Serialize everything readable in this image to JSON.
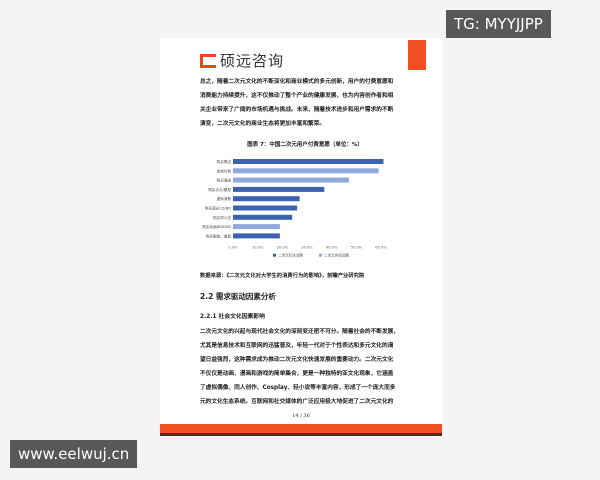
{
  "header": {
    "brand": "硕远咨询"
  },
  "intro_paragraph": [
    "总之，随着二次元文化的不断深化和商业模式的多元创新，用户的付费意愿和",
    "消费能力持续提升，这不仅推动了整个产业的健康发展，也为内容创作者和相",
    "关企业带来了广阔的市场机遇与挑战。未来，随着技术进步和用户需求的不断",
    "演变，二次元文化的商业生态将更加丰富和繁荣。"
  ],
  "chart_title": "图表 7：中国二次元用户付费意愿（单位：%）",
  "chart_data": {
    "type": "bar",
    "orientation": "horizontal",
    "categories": [
      "购买周边",
      "游戏付费",
      "购买漫画",
      "购买手办/模型",
      "虚拟消费",
      "购买蓝光CD/BD",
      "购买同人志",
      "购买动画BD/DVD",
      "购买服装、道具"
    ],
    "values": [
      61,
      59,
      47,
      37,
      27,
      26,
      24,
      19,
      19
    ],
    "series_of_bar": [
      "二次元衍生消费",
      "二次元内容消费",
      "二次元内容消费",
      "二次元衍生消费",
      "二次元衍生消费",
      "二次元衍生消费",
      "二次元衍生消费",
      "二次元内容消费",
      "二次元衍生消费"
    ],
    "legend": [
      {
        "name": "二次元衍生消费",
        "color": "#3a62b0"
      },
      {
        "name": "二次元内容消费",
        "color": "#8fa8dc"
      }
    ],
    "xlim": [
      0,
      60
    ],
    "xticks": [
      "0.0%",
      "10.0%",
      "20.0%",
      "30.0%",
      "40.0%",
      "50.0%",
      "60.0%"
    ],
    "legend_position": "bottom"
  },
  "source": "数据来源：《二次元文化对大学生的消费行为的影响》，前瞻产业研究院",
  "section_heading": "2.2 需求驱动因素分析",
  "subsection_heading": "2.2.1 社会文化因素影响",
  "body_paragraph": [
    "二次元文化的兴起与现代社会文化的深刻变迁密不可分。随着社会的不断发展，",
    "尤其是信息技术和互联网的迅猛普及，年轻一代对于个性表达和多元文化的渴",
    "望日益强烈，这种需求成为推动二次元文化快速发展的重要动力。二次元文化",
    "不仅仅是动画、漫画和游戏的简单集合，更是一种独特的亚文化现象，它涵盖",
    "了虚拟偶像、同人创作、Cosplay、轻小说等丰富内容，形成了一个庞大而多",
    "元的文化生态系统。互联网和社交媒体的广泛应用极大地促进了二次元文化的"
  ],
  "page_number": "14 / 36",
  "watermarks": {
    "top": "TG: MYYJJPP",
    "bottom": "www.eelwuj.cn"
  }
}
